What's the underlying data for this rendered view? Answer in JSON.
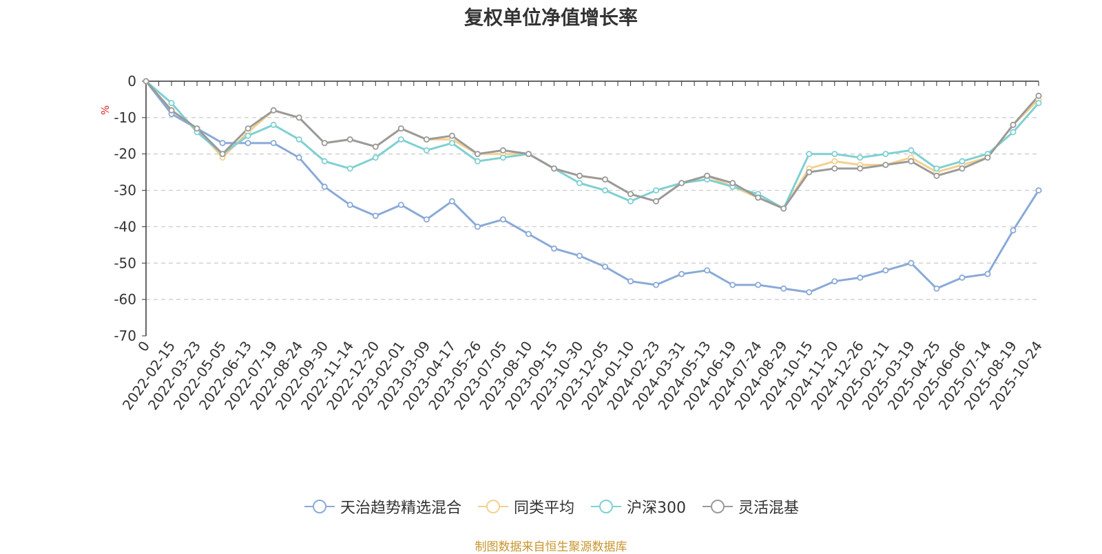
{
  "chart_data": {
    "type": "line",
    "title": "复权单位净值增长率",
    "ylabel": "%",
    "ylim": [
      -70,
      0
    ],
    "yticks": [
      0,
      -10,
      -20,
      -30,
      -40,
      -50,
      -60,
      -70
    ],
    "categories": [
      "0",
      "2022-02-15",
      "2022-03-23",
      "2022-05-05",
      "2022-06-13",
      "2022-07-19",
      "2022-08-24",
      "2022-09-30",
      "2022-11-14",
      "2022-12-20",
      "2023-02-01",
      "2023-03-09",
      "2023-04-17",
      "2023-05-26",
      "2023-07-05",
      "2023-08-10",
      "2023-09-15",
      "2023-10-30",
      "2023-12-05",
      "2024-01-10",
      "2024-02-23",
      "2024-03-31",
      "2024-05-13",
      "2024-06-19",
      "2024-07-24",
      "2024-08-29",
      "2024-10-15",
      "2024-11-20",
      "2024-12-26",
      "2025-02-11",
      "2025-03-19",
      "2025-04-25",
      "2025-06-06",
      "2025-07-14",
      "2025-08-19",
      "2025-10-24"
    ],
    "series": [
      {
        "name": "天治趋势精选混合",
        "color": "#8aa9d8",
        "values": [
          0,
          -9,
          -13,
          -17,
          -17,
          -17,
          -21,
          -29,
          -34,
          -37,
          -34,
          -38,
          -33,
          -40,
          -38,
          -42,
          -46,
          -48,
          -51,
          -55,
          -56,
          -53,
          -52,
          -56,
          -56,
          -57,
          -58,
          -55,
          -54,
          -52,
          -50,
          -57,
          -54,
          -53,
          -41,
          -30
        ]
      },
      {
        "name": "同类平均",
        "color": "#f5d08c",
        "values": [
          0,
          -8,
          -13,
          -21,
          -14,
          -8,
          -10,
          -17,
          -16,
          -18,
          -13,
          -16,
          -16,
          -20,
          -20,
          -20,
          -24,
          -26,
          -27,
          -31,
          -33,
          -28,
          -26,
          -29,
          -32,
          -35,
          -24,
          -22,
          -23,
          -23,
          -21,
          -25,
          -23,
          -21,
          -12,
          -5
        ]
      },
      {
        "name": "沪深300",
        "color": "#7fd0d2",
        "values": [
          0,
          -6,
          -14,
          -20,
          -15,
          -12,
          -16,
          -22,
          -24,
          -21,
          -16,
          -19,
          -17,
          -22,
          -21,
          -20,
          -24,
          -28,
          -30,
          -33,
          -30,
          -28,
          -27,
          -29,
          -31,
          -35,
          -20,
          -20,
          -21,
          -20,
          -19,
          -24,
          -22,
          -20,
          -14,
          -6
        ]
      },
      {
        "name": "灵活混基",
        "color": "#9a9a9a",
        "values": [
          0,
          -8,
          -13,
          -20,
          -13,
          -8,
          -10,
          -17,
          -16,
          -18,
          -13,
          -16,
          -15,
          -20,
          -19,
          -20,
          -24,
          -26,
          -27,
          -31,
          -33,
          -28,
          -26,
          -28,
          -32,
          -35,
          -25,
          -24,
          -24,
          -23,
          -22,
          -26,
          -24,
          -21,
          -12,
          -4
        ]
      }
    ]
  },
  "legend": [
    "天治趋势精选混合",
    "同类平均",
    "沪深300",
    "灵活混基"
  ],
  "source": "制图数据来自恒生聚源数据库"
}
